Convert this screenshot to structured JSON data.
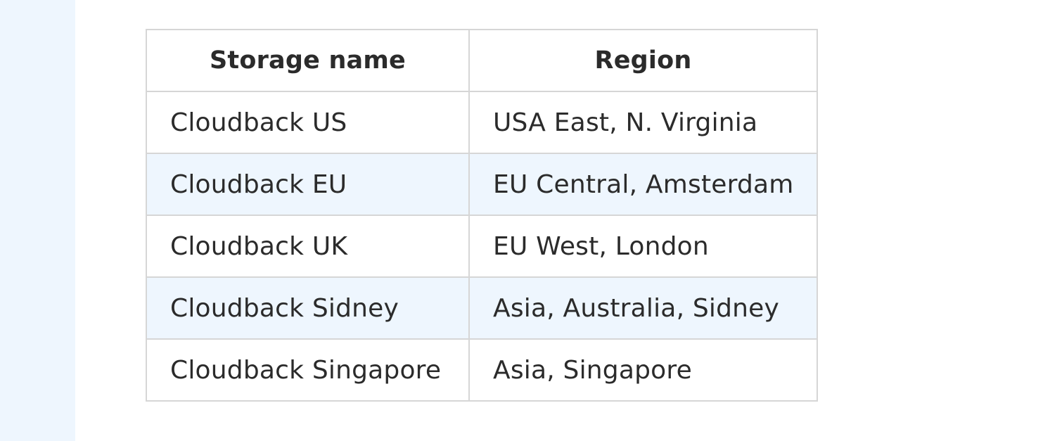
{
  "table": {
    "headers": [
      "Storage name",
      "Region"
    ],
    "rows": [
      [
        "Cloudback US",
        "USA East, N. Virginia"
      ],
      [
        "Cloudback EU",
        "EU Central, Amsterdam"
      ],
      [
        "Cloudback UK",
        "EU West, London"
      ],
      [
        "Cloudback Sidney",
        "Asia, Australia, Sidney"
      ],
      [
        "Cloudback Singapore",
        "Asia, Singapore"
      ]
    ]
  },
  "colors": {
    "rail_background": "#eef6fe",
    "stripe_background": "#eef6fe",
    "border": "#d6d6d6",
    "text": "#2b2b2b"
  }
}
